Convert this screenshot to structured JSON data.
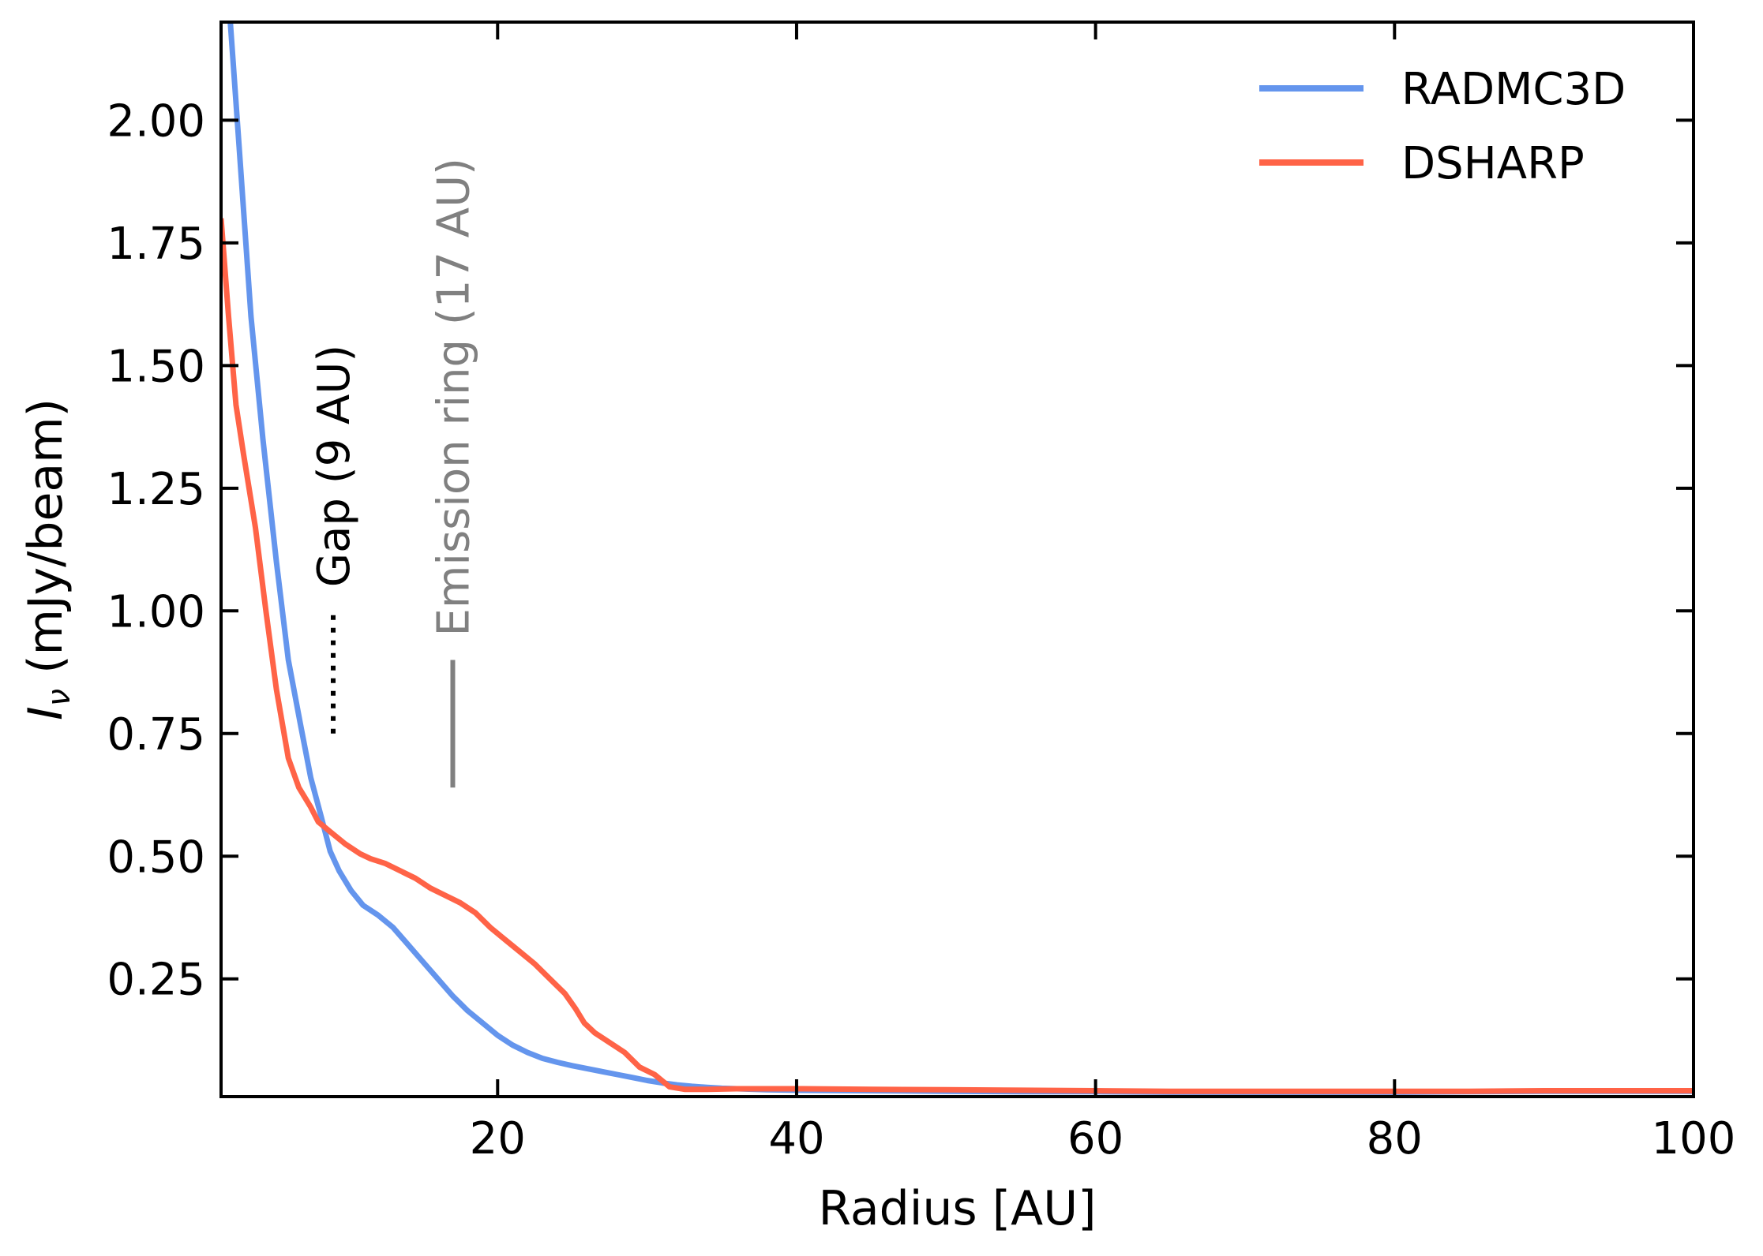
{
  "chart_data": {
    "type": "line",
    "xlabel": "Radius [AU]",
    "ylabel_main": "I",
    "ylabel_sub": "ν",
    "ylabel_rest": " (mJy/beam)",
    "xlim": [
      1.5,
      100
    ],
    "ylim": [
      0.01,
      2.2
    ],
    "x_ticks": [
      20,
      40,
      60,
      80,
      100
    ],
    "x_tick_labels": [
      "20",
      "40",
      "60",
      "80",
      "100"
    ],
    "y_ticks": [
      0.25,
      0.5,
      0.75,
      1.0,
      1.25,
      1.5,
      1.75,
      2.0
    ],
    "y_tick_labels": [
      "0.25",
      "0.50",
      "0.75",
      "1.00",
      "1.25",
      "1.50",
      "1.75",
      "2.00"
    ],
    "grid": false,
    "legend_position": "top-right",
    "series": [
      {
        "name": "RADMC3D",
        "color": "#6495ED",
        "x": [
          2.0,
          2.7,
          3.5,
          4.3,
          5.2,
          6.0,
          6.8,
          7.5,
          8.2,
          8.8,
          9.4,
          10.2,
          11.0,
          12.0,
          13.0,
          14.0,
          15.0,
          16.0,
          17.0,
          18.0,
          19.0,
          20.0,
          21.0,
          22.0,
          23.0,
          24.0,
          25.0,
          26.0,
          27.0,
          28.0,
          29.0,
          30.0,
          31.0,
          32.0,
          33.0,
          34.0,
          35.0,
          36.0,
          38.0,
          40.0,
          45.0,
          50.0,
          55.0,
          60.0,
          65.0,
          70.0,
          75.0,
          80.0,
          85.0,
          90.0,
          95.0,
          100.0
        ],
        "y": [
          2.25,
          1.95,
          1.6,
          1.35,
          1.1,
          0.9,
          0.77,
          0.66,
          0.58,
          0.51,
          0.47,
          0.43,
          0.4,
          0.38,
          0.355,
          0.32,
          0.285,
          0.25,
          0.215,
          0.185,
          0.16,
          0.135,
          0.115,
          0.1,
          0.088,
          0.08,
          0.073,
          0.067,
          0.061,
          0.055,
          0.049,
          0.043,
          0.038,
          0.034,
          0.031,
          0.029,
          0.027,
          0.026,
          0.024,
          0.023,
          0.022,
          0.021,
          0.02,
          0.02,
          0.019,
          0.019,
          0.019,
          0.019,
          0.02,
          0.021,
          0.021,
          0.021
        ]
      },
      {
        "name": "DSHARP",
        "color": "#FF6347",
        "x": [
          1.5,
          2.0,
          2.5,
          3.0,
          3.8,
          4.5,
          5.2,
          6.0,
          6.7,
          7.5,
          8.0,
          8.8,
          9.8,
          10.8,
          11.5,
          12.5,
          13.5,
          14.5,
          15.5,
          16.5,
          17.5,
          18.5,
          19.5,
          20.5,
          21.5,
          22.5,
          23.5,
          24.5,
          25.2,
          25.8,
          26.5,
          27.5,
          28.5,
          29.5,
          30.5,
          31.5,
          32.5,
          34.0,
          36.0,
          40.0,
          45.0,
          50.0,
          55.0,
          60.0,
          65.0,
          70.0,
          75.0,
          80.0,
          85.0,
          90.0,
          95.0,
          100.0
        ],
        "y": [
          1.8,
          1.6,
          1.42,
          1.32,
          1.17,
          1.0,
          0.84,
          0.7,
          0.64,
          0.6,
          0.57,
          0.55,
          0.525,
          0.505,
          0.495,
          0.485,
          0.47,
          0.455,
          0.435,
          0.42,
          0.405,
          0.385,
          0.355,
          0.33,
          0.305,
          0.28,
          0.25,
          0.22,
          0.19,
          0.16,
          0.14,
          0.12,
          0.1,
          0.07,
          0.055,
          0.03,
          0.025,
          0.025,
          0.026,
          0.026,
          0.025,
          0.024,
          0.023,
          0.022,
          0.021,
          0.021,
          0.021,
          0.021,
          0.021,
          0.022,
          0.022,
          0.022
        ]
      }
    ],
    "annotations": [
      {
        "text": "Gap (9 AU)",
        "x": 9,
        "y_start": 0.75,
        "y_end": 1.0,
        "color": "#000000",
        "style": "dotted"
      },
      {
        "text": "Emission ring (17 AU)",
        "x": 17,
        "y_start": 0.64,
        "y_end": 0.9,
        "color": "#808080",
        "style": "solid"
      }
    ]
  }
}
